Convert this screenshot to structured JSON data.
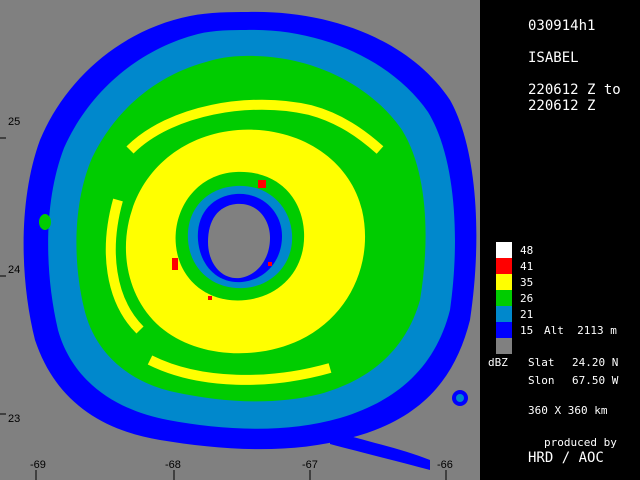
{
  "header": {
    "date_code": "030914h1",
    "storm_name": "ISABEL",
    "time_line1": "220612 Z to",
    "time_line2": "220612 Z"
  },
  "legend": {
    "unit": "dBZ",
    "levels": [
      {
        "value": "48",
        "color": "#ffffff"
      },
      {
        "value": "41",
        "color": "#ff0000"
      },
      {
        "value": "35",
        "color": "#ffff00"
      },
      {
        "value": "26",
        "color": "#00cc00"
      },
      {
        "value": "21",
        "color": "#0088cc"
      },
      {
        "value": "15",
        "color": "#0000ff"
      }
    ],
    "gray_color": "#808080",
    "altitude": "Alt  2113 m"
  },
  "info": {
    "slat_label": "Slat",
    "slat_value": "24.20 N",
    "slon_label": "Slon",
    "slon_value": "67.50 W",
    "size": "360 X 360 km",
    "produced_by": "produced by",
    "producer": "HRD / AOC"
  },
  "axes": {
    "lon_ticks": [
      "-69",
      "-68",
      "-67",
      "-66"
    ],
    "lat_ticks": [
      "25",
      "24",
      "23"
    ]
  },
  "colors": {
    "background": "#000000",
    "no_data": "#808080",
    "dbz15": "#0000ff",
    "dbz21": "#0088cc",
    "dbz26": "#00cc00",
    "dbz35": "#ffff00",
    "dbz41": "#ff0000"
  }
}
